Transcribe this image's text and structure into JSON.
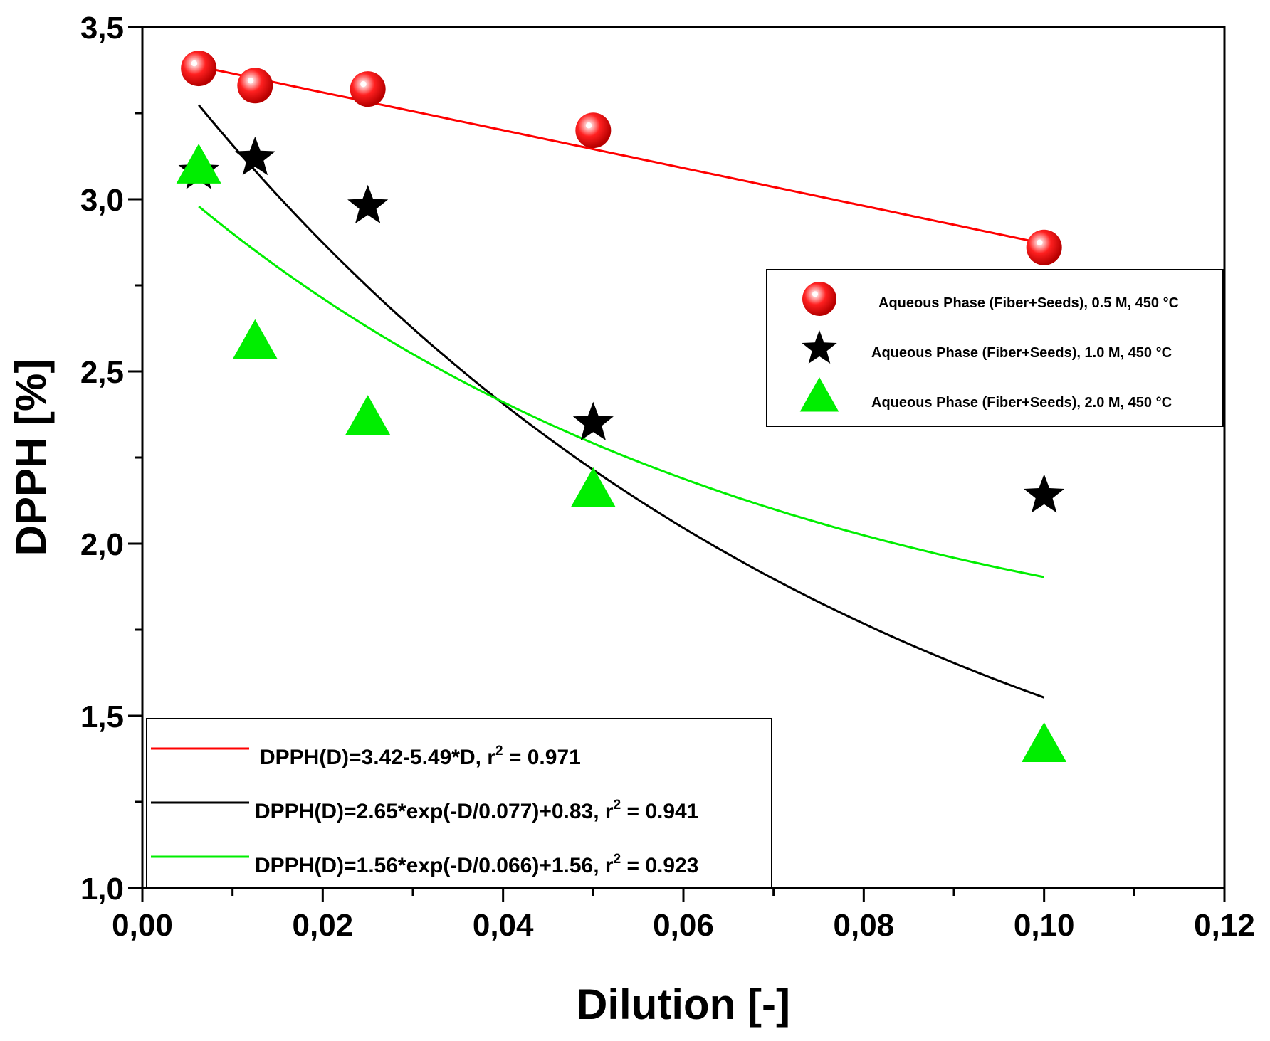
{
  "chart_data": {
    "type": "scatter",
    "title": "",
    "xlabel": "Dilution [-]",
    "ylabel": "DPPH [%]",
    "xlim": [
      0.0,
      0.12
    ],
    "ylim": [
      1.0,
      3.5
    ],
    "x_ticks": [
      0.0,
      0.02,
      0.04,
      0.06,
      0.08,
      0.1,
      0.12
    ],
    "x_tick_labels": [
      "0,00",
      "0,02",
      "0,04",
      "0,06",
      "0,08",
      "0,10",
      "0,12"
    ],
    "y_ticks": [
      1.0,
      1.5,
      2.0,
      2.5,
      3.0,
      3.5
    ],
    "y_tick_labels": [
      "1,0",
      "1,5",
      "2,0",
      "2,5",
      "3,0",
      "3,5"
    ],
    "grid": false,
    "legend_position": "right",
    "fit_legend_position": "bottom-left",
    "x": [
      0.00625,
      0.0125,
      0.025,
      0.05,
      0.1
    ],
    "series": [
      {
        "name": "Aqueous Phase (Fiber+Seeds), 0.5 M, 450 °C",
        "marker": "sphere",
        "color": "#ff0000",
        "values": [
          3.38,
          3.33,
          3.32,
          3.2,
          2.86
        ],
        "fit": {
          "label": "DPPH(D)=3.42-5.49*D, r",
          "sup": "2",
          "tail": " = 0.971",
          "model": "linear",
          "a": 3.42,
          "b": 5.49,
          "color": "#ff0000"
        }
      },
      {
        "name": "Aqueous Phase (Fiber+Seeds), 1.0 M, 450 °C",
        "marker": "star",
        "color": "#000000",
        "values": [
          3.08,
          3.12,
          2.98,
          2.35,
          2.14
        ],
        "fit": {
          "label": "DPPH(D)=2.65*exp(-D/0.077)+0.83, r",
          "sup": "2",
          "tail": " = 0.941",
          "model": "exp",
          "A": 2.65,
          "t": 0.077,
          "c": 0.83,
          "color": "#000000"
        }
      },
      {
        "name": "Aqueous Phase (Fiber+Seeds), 2.0 M, 450 °C",
        "marker": "triangle",
        "color": "#00ee00",
        "values": [
          3.09,
          2.58,
          2.36,
          2.15,
          1.41
        ],
        "fit": {
          "label": "DPPH(D)=1.56*exp(-D/0.066)+1.56, r",
          "sup": "2",
          "tail": " = 0.923",
          "model": "exp",
          "A": 1.56,
          "t": 0.066,
          "c": 1.56,
          "color": "#00ee00"
        }
      }
    ]
  }
}
